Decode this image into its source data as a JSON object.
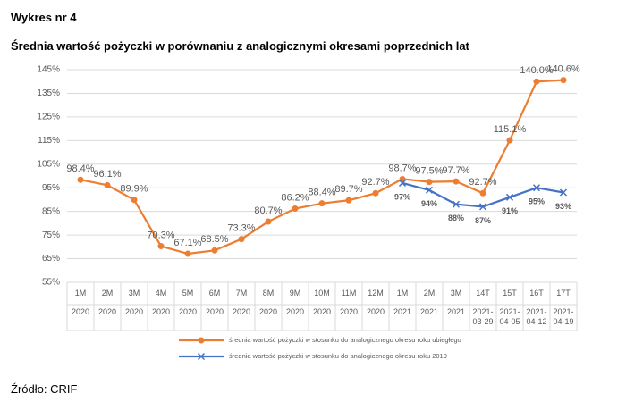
{
  "chart_data": {
    "type": "line",
    "title": "Wykres nr 4",
    "subtitle": "Średnia wartość pożyczki w porównaniu z analogicznymi okresami poprzednich lat",
    "source": "Źródło: CRIF",
    "categories": [
      "1M",
      "2M",
      "3M",
      "4M",
      "5M",
      "6M",
      "7M",
      "8M",
      "9M",
      "10M",
      "11M",
      "12M",
      "1M",
      "2M",
      "3M",
      "14T",
      "15T",
      "16T",
      "17T"
    ],
    "subcategories": [
      "2020",
      "2020",
      "2020",
      "2020",
      "2020",
      "2020",
      "2020",
      "2020",
      "2020",
      "2020",
      "2020",
      "2020",
      "2021",
      "2021",
      "2021",
      "2021-03-29",
      "2021-04-05",
      "2021-04-12",
      "2021-04-19"
    ],
    "series": [
      {
        "name": "średnia wartość pożyczki w stosunku do analogicznego okresu roku ubiegłego",
        "color": "#ed7d31",
        "values": [
          98.4,
          96.1,
          89.9,
          70.3,
          67.1,
          68.5,
          73.3,
          80.7,
          86.2,
          88.4,
          89.7,
          92.7,
          98.7,
          97.5,
          97.7,
          92.7,
          115.1,
          140.0,
          140.6
        ],
        "value_labels": [
          "98.4%",
          "96.1%",
          "89.9%",
          "70.3%",
          "67.1%",
          "68.5%",
          "73.3%",
          "80.7%",
          "86.2%",
          "88.4%",
          "89.7%",
          "92.7%",
          "98.7%",
          "97.5%",
          "97.7%",
          "92.7%",
          "115.1%",
          "140.0%",
          "140.6%"
        ]
      },
      {
        "name": "średnia wartość pożyczki w stosunku do analogicznego okresu roku 2019",
        "color": "#4472c4",
        "values": [
          null,
          null,
          null,
          null,
          null,
          null,
          null,
          null,
          null,
          null,
          null,
          null,
          97,
          94,
          88,
          87,
          91,
          95,
          93
        ],
        "value_labels": [
          null,
          null,
          null,
          null,
          null,
          null,
          null,
          null,
          null,
          null,
          null,
          null,
          "97%",
          "94%",
          "88%",
          "87%",
          "91%",
          "95%",
          "93%"
        ]
      }
    ],
    "ylim": [
      55,
      145
    ],
    "yticks": [
      {
        "value": 55,
        "label": "55%"
      },
      {
        "value": 65,
        "label": "65%"
      },
      {
        "value": 75,
        "label": "75%"
      },
      {
        "value": 85,
        "label": "85%"
      },
      {
        "value": 95,
        "label": "95%"
      },
      {
        "value": 105,
        "label": "105%"
      },
      {
        "value": 115,
        "label": "115%"
      },
      {
        "value": 125,
        "label": "125%"
      },
      {
        "value": 135,
        "label": "135%"
      },
      {
        "value": 145,
        "label": "145%"
      }
    ],
    "grid": true
  }
}
